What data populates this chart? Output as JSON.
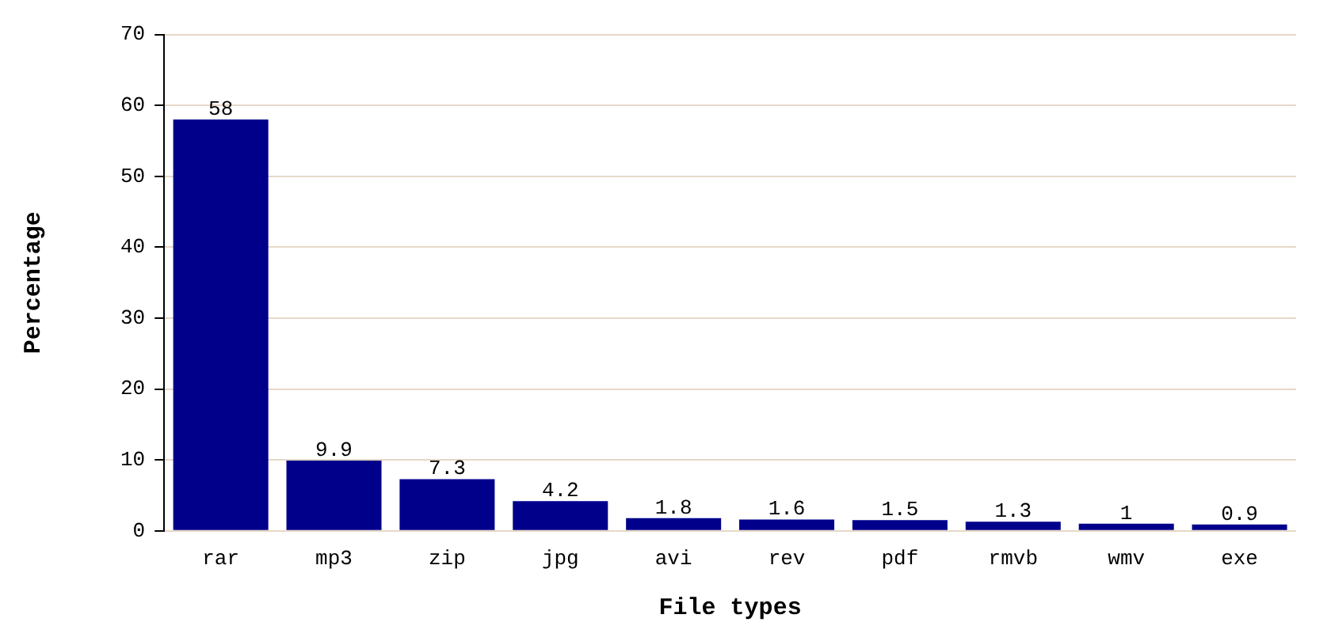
{
  "chart_data": {
    "type": "bar",
    "xlabel": "File types",
    "ylabel": "Percentage",
    "categories": [
      "rar",
      "mp3",
      "zip",
      "jpg",
      "avi",
      "rev",
      "pdf",
      "rmvb",
      "wmv",
      "exe"
    ],
    "values": [
      58,
      9.9,
      7.3,
      4.2,
      1.8,
      1.6,
      1.5,
      1.3,
      1,
      0.9
    ],
    "color": "#00008b",
    "ylim": [
      0,
      70
    ],
    "yticks": [
      0,
      10,
      20,
      30,
      40,
      50,
      60,
      70
    ],
    "grid": "y",
    "data_labels": true
  }
}
